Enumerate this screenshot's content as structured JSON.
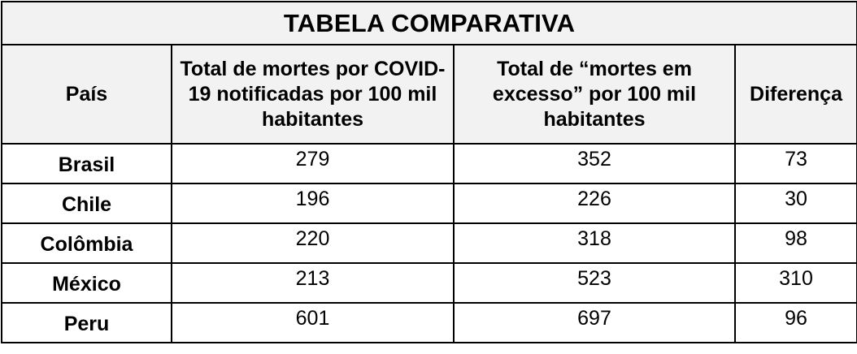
{
  "table": {
    "title": "TABELA COMPARATIVA",
    "headers": [
      "País",
      "Total de mortes por COVID-19 notificadas por 100 mil habitantes",
      "Total de “mortes em excesso” por 100 mil habitantes",
      "Diferença"
    ],
    "rows": [
      {
        "country": "Brasil",
        "reported": "279",
        "excess": "352",
        "difference": "73"
      },
      {
        "country": "Chile",
        "reported": "196",
        "excess": "226",
        "difference": "30"
      },
      {
        "country": "Colômbia",
        "reported": "220",
        "excess": "318",
        "difference": "98"
      },
      {
        "country": "México",
        "reported": "213",
        "excess": "523",
        "difference": "310"
      },
      {
        "country": "Peru",
        "reported": "601",
        "excess": "697",
        "difference": "96"
      }
    ]
  }
}
